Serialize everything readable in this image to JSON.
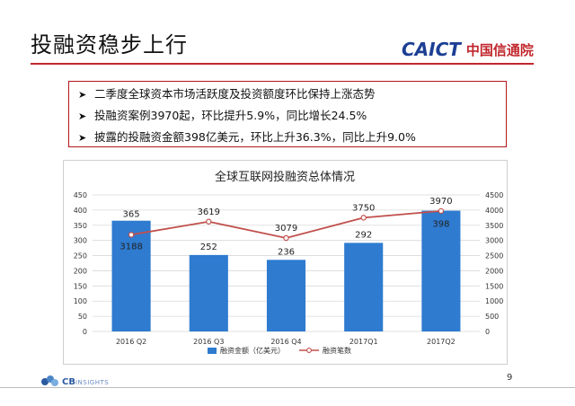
{
  "slide": {
    "title": "投融资稳步上行",
    "logo_text": "CAICT",
    "logo_cn": "中国信通院",
    "page_number": "9",
    "footer_logo_main": "CB",
    "footer_logo_sub": "INSIGHTS",
    "bullets": [
      "二季度全球资本市场活跃度及投资额度环比保持上涨态势",
      "投融资案例3970起，环比提升5.9%，同比增长24.5%",
      "披露的投融资金额398亿美元，环比上升36.3%，同比上升9.0%"
    ],
    "bullet_icon": "arrow-bullet-icon"
  },
  "colors": {
    "accent_red": "#c0272d",
    "bar_blue": "#2e7bd0",
    "line_red": "#c0504d",
    "logo_blue": "#1c3f94"
  },
  "chart_data": {
    "type": "bar",
    "title": "全球互联网投融资总体情况",
    "categories": [
      "2016 Q2",
      "2016 Q3",
      "2016 Q4",
      "2017Q1",
      "2017Q2"
    ],
    "series": [
      {
        "name": "融资金额（亿美元）",
        "type": "bar",
        "axis": "left",
        "values": [
          365,
          252,
          236,
          292,
          398
        ],
        "labels": [
          "365",
          "252",
          "236",
          "292",
          "398"
        ]
      },
      {
        "name": "融资笔数",
        "type": "line",
        "axis": "right",
        "values": [
          3188,
          3619,
          3079,
          3750,
          3970
        ],
        "labels": [
          "3188",
          "3619",
          "3079",
          "3750",
          "3970"
        ]
      }
    ],
    "y_left": {
      "min": 0,
      "max": 450,
      "ticks": [
        "0",
        "50",
        "100",
        "150",
        "200",
        "250",
        "300",
        "350",
        "400",
        "450"
      ]
    },
    "y_right": {
      "min": 0,
      "max": 4500,
      "ticks": [
        "0",
        "500",
        "1000",
        "1500",
        "2000",
        "2500",
        "3000",
        "3500",
        "4000",
        "4500"
      ]
    },
    "grid": true,
    "legend": "bottom"
  }
}
